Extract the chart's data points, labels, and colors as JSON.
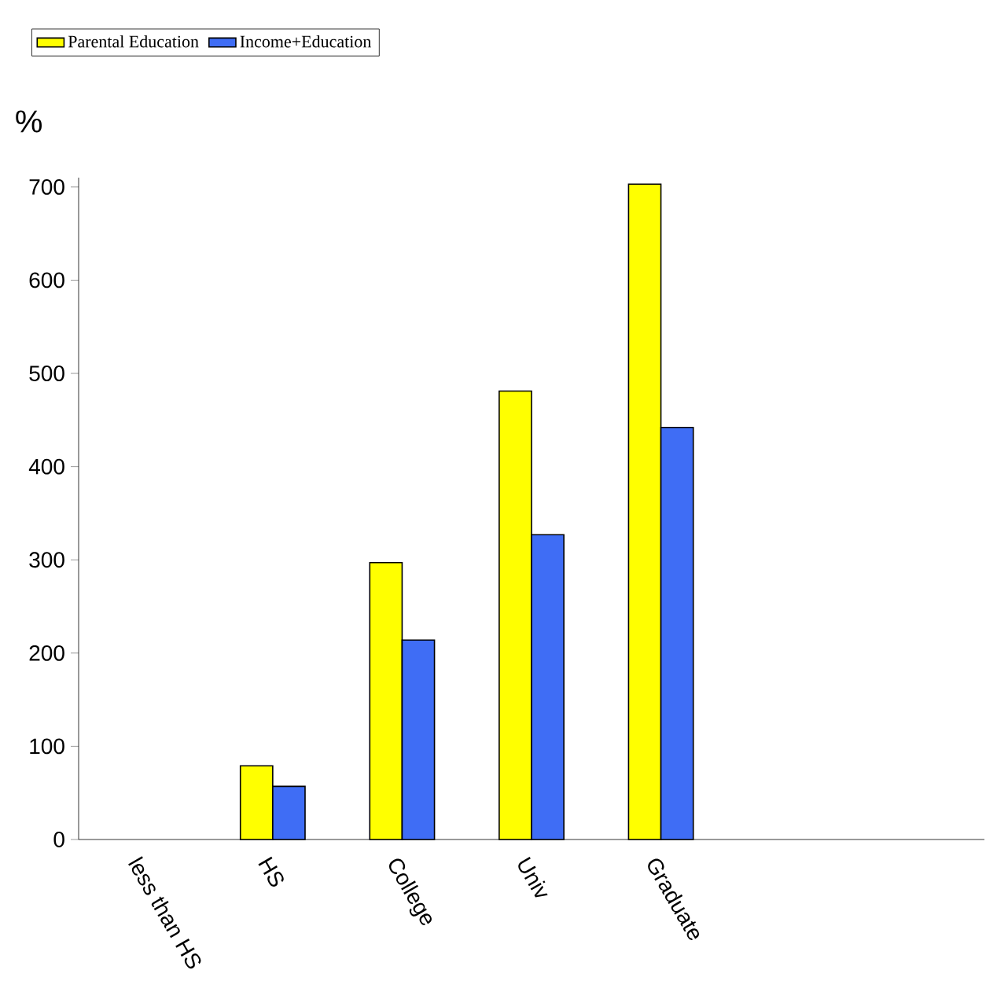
{
  "chart_data": {
    "type": "bar",
    "ylabel": "%",
    "categories": [
      "less than HS",
      "HS",
      "College",
      "Univ",
      "Graduate",
      null,
      null
    ],
    "series": [
      {
        "name": "Parental Education",
        "color": "#ffff00",
        "values": [
          null,
          79,
          297,
          481,
          703,
          null,
          null
        ]
      },
      {
        "name": "Income+Education",
        "color": "#3f6df5",
        "values": [
          null,
          57,
          214,
          327,
          442,
          null,
          null
        ]
      }
    ],
    "ylim": [
      0,
      710
    ],
    "yticks": [
      0,
      100,
      200,
      300,
      400,
      500,
      600,
      700
    ],
    "grid": false,
    "legend": "top left"
  }
}
